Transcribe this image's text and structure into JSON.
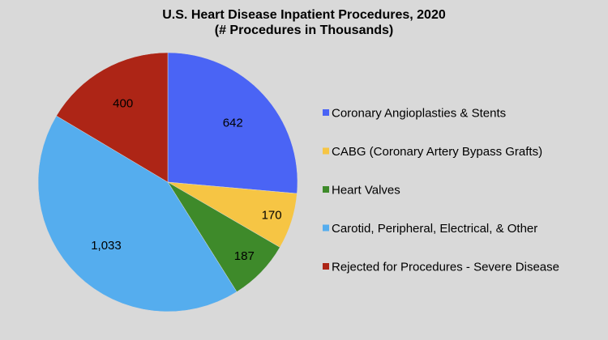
{
  "chart_data": {
    "type": "pie",
    "title": "U.S. Heart Disease Inpatient Procedures, 2020",
    "subtitle": "(# Procedures in Thousands)",
    "legend_position": "right",
    "slices": [
      {
        "label": "Coronary Angioplasties & Stents",
        "value": 642,
        "display": "642",
        "color": "#4a64f5"
      },
      {
        "label": "CABG (Coronary Artery Bypass Grafts)",
        "value": 170,
        "display": "170",
        "color": "#f6c544"
      },
      {
        "label": "Heart Valves",
        "value": 187,
        "display": "187",
        "color": "#3e8a2a"
      },
      {
        "label": "Carotid, Peripheral, Electrical, & Other",
        "value": 1033,
        "display": "1,033",
        "color": "#55adee"
      },
      {
        "label": "Rejected for Procedures - Severe Disease",
        "value": 400,
        "display": "400",
        "color": "#ad2516"
      }
    ]
  }
}
